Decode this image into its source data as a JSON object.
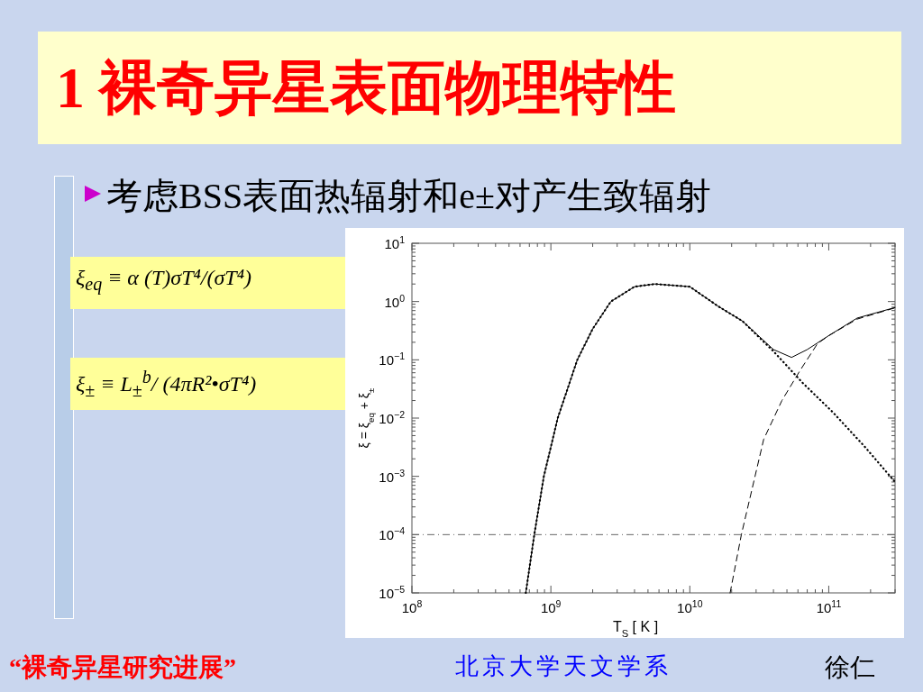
{
  "chart_data": {
    "type": "line",
    "title": "1 裸奇异星表面物理特性",
    "subtitle": "考虑BSS表面热辐射和e±对产生致辐射",
    "xlabel": "T$_{S}$ [ K ]",
    "ylabel": "ξ = ξ$_{eq}$ + ξ$_{±}$",
    "log": "xy",
    "grid": false,
    "xlim": [
      100000000.0,
      300000000000.0
    ],
    "ylim": [
      1e-05,
      10
    ],
    "xticks": [
      {
        "value": 100000000.0,
        "label": "10$^{8}$"
      },
      {
        "value": 1000000000.0,
        "label": "10$^{9}$"
      },
      {
        "value": 10000000000.0,
        "label": "10$^{10}$"
      },
      {
        "value": 100000000000.0,
        "label": "10$^{11}$"
      }
    ],
    "yticks": [
      {
        "value": 1e-05,
        "label": "10$^{−5}$"
      },
      {
        "value": 0.0001,
        "label": "10$^{−4}$"
      },
      {
        "value": 0.001,
        "label": "10$^{−3}$"
      },
      {
        "value": 0.01,
        "label": "10$^{−2}$"
      },
      {
        "value": 0.1,
        "label": "10$^{−1}$"
      },
      {
        "value": 1,
        "label": "10$^{0}$"
      },
      {
        "value": 10,
        "label": "10$^{1}$"
      }
    ],
    "series": [
      {
        "color": "#000000",
        "line_style": "solid",
        "x": [
          660000000.0,
          760000000.0,
          890000000.0,
          1120000000.0,
          1550000000.0,
          2000000000.0,
          2700000000.0,
          4000000000.0,
          5600000000.0,
          10000000000.0,
          16000000000.0,
          24000000000.0,
          40000000000.0,
          54000000000.0,
          70000000000.0,
          100000000000.0,
          160000000000.0,
          300000000000.0
        ],
        "values": [
          1e-05,
          0.0001,
          0.001,
          0.01,
          0.1,
          0.34,
          1,
          1.8,
          2,
          1.8,
          0.83,
          0.46,
          0.15,
          0.11,
          0.15,
          0.26,
          0.52,
          0.79
        ]
      },
      {
        "color": "#000000",
        "line_style": "dotted",
        "x": [
          660000000.0,
          760000000.0,
          890000000.0,
          1120000000.0,
          1550000000.0,
          2000000000.0,
          2700000000.0,
          4000000000.0,
          5600000000.0,
          10000000000.0,
          16000000000.0,
          24000000000.0,
          40000000000.0,
          65000000000.0,
          107000000000.0,
          180000000000.0,
          300000000000.0
        ],
        "values": [
          1e-05,
          0.0001,
          0.001,
          0.01,
          0.1,
          0.34,
          1,
          1.8,
          2,
          1.8,
          0.83,
          0.46,
          0.14,
          0.04,
          0.0126,
          0.0033,
          0.0008
        ]
      },
      {
        "color": "#000000",
        "line_style": "dashed",
        "x": [
          19500000000.0,
          23500000000.0,
          34000000000.0,
          46000000000.0,
          62000000000.0,
          83000000000.0,
          100000000000.0,
          160000000000.0,
          300000000000.0
        ],
        "values": [
          1e-05,
          0.0001,
          0.0043,
          0.02,
          0.065,
          0.19,
          0.26,
          0.5,
          0.78
        ]
      }
    ],
    "ref_lines": [
      {
        "axis": "y",
        "value": 0.0001,
        "line_style": "dashdot",
        "color": "#666666"
      }
    ],
    "annotations": [
      "ξ$_{eq}$ ≡ α (T)σT⁴/(σT⁴)",
      "ξ$_{±}$ ≡ L$_{±}$$^{b}$/ (4πR²•σT⁴)",
      "“裸奇异星研究进展”",
      "北京大学天文学系",
      "徐仁"
    ]
  }
}
